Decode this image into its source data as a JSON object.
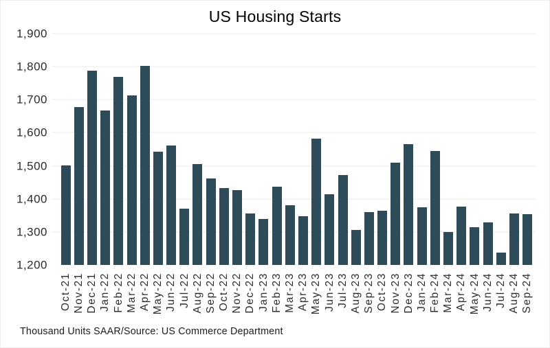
{
  "colors": {
    "bar": "#2E4B59",
    "gridline": "#E9E9E9",
    "title_text": "#000000",
    "tick_text": "#2D2D2D"
  },
  "chart_data": {
    "type": "bar",
    "title": "US Housing Starts",
    "footnote": "Thousand Units SAAR/Source: US Commerce Department",
    "xlabel": "",
    "ylabel": "",
    "ylim": [
      1200,
      1900
    ],
    "ytick_step": 100,
    "ytick_labels": [
      "1,200",
      "1,300",
      "1,400",
      "1,500",
      "1,600",
      "1,700",
      "1,800",
      "1,900"
    ],
    "grid": "horizontal",
    "legend": "none",
    "categories": [
      "Oct-21",
      "Nov-21",
      "Dec-21",
      "Jan-22",
      "Feb-22",
      "Mar-22",
      "Apr-22",
      "May-22",
      "Jun-22",
      "Jul-22",
      "Aug-22",
      "Sep-22",
      "Oct-22",
      "Nov-22",
      "Dec-22",
      "Jan-23",
      "Feb-23",
      "Mar-23",
      "Apr-23",
      "May-23",
      "Jun-23",
      "Jul-23",
      "Aug-23",
      "Sep-23",
      "Oct-23",
      "Nov-23",
      "Dec-23",
      "Jan-24",
      "Feb-24",
      "Mar-24",
      "Apr-24",
      "May-24",
      "Jun-24",
      "Jul-24",
      "Aug-24",
      "Sep-24"
    ],
    "values": [
      1502,
      1678,
      1788,
      1668,
      1770,
      1713,
      1803,
      1543,
      1561,
      1370,
      1505,
      1462,
      1432,
      1426,
      1356,
      1339,
      1436,
      1380,
      1348,
      1583,
      1415,
      1472,
      1305,
      1361,
      1364,
      1509,
      1566,
      1375,
      1545,
      1299,
      1377,
      1315,
      1329,
      1238,
      1356,
      1353
    ]
  }
}
